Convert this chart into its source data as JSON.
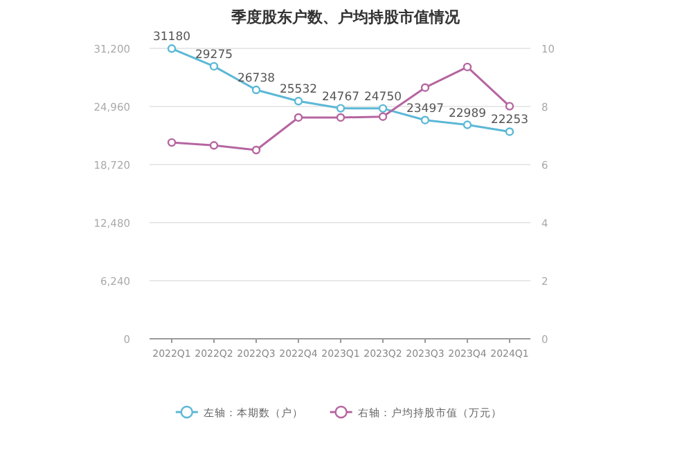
{
  "chart_data": {
    "type": "line",
    "title": "季度股东户数、户均持股市值情况",
    "categories": [
      "2022Q1",
      "2022Q2",
      "2022Q3",
      "2022Q4",
      "2023Q1",
      "2023Q2",
      "2023Q3",
      "2023Q4",
      "2024Q1"
    ],
    "series": [
      {
        "name": "左轴：本期数（户）",
        "color": "#5bb8d6",
        "values": [
          31180,
          29275,
          26738,
          25532,
          24767,
          24750,
          23497,
          22989,
          22253
        ],
        "data_labels": true
      },
      {
        "name": "右轴：户均持股市值（万元）",
        "color": "#b565a0",
        "axis": "y2",
        "values": [
          6.76,
          6.66,
          6.5,
          7.62,
          7.62,
          7.65,
          8.65,
          9.36,
          8.01
        ]
      }
    ],
    "ylim": [
      0,
      31200
    ],
    "yticks": [
      0,
      {
        "value": 6240,
        "label": "6,240"
      },
      {
        "value": 12480,
        "label": "12,480"
      },
      {
        "value": 18720,
        "label": "18,720"
      },
      {
        "value": 24960,
        "label": "24,960"
      },
      {
        "value": 31200,
        "label": "31,200"
      }
    ],
    "y2lim": [
      0,
      10
    ],
    "y2ticks": [
      0,
      2,
      4,
      6,
      8,
      10
    ],
    "grid": "y",
    "legend": "bottom",
    "marker": "circle"
  }
}
